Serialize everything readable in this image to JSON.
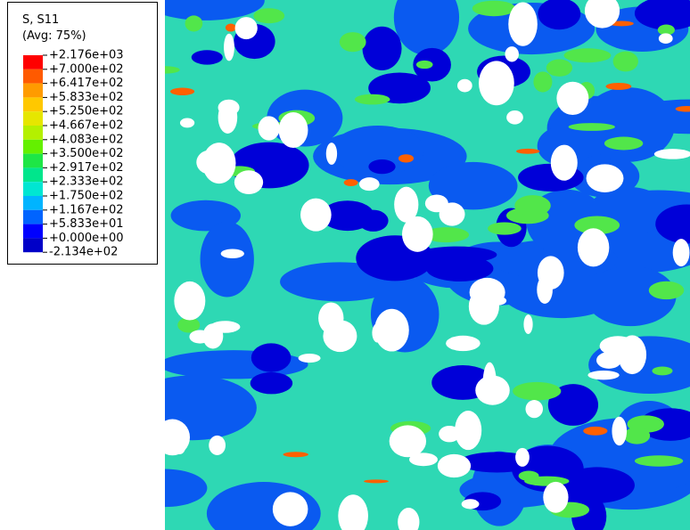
{
  "legend": {
    "title": "S, S11",
    "subtitle": "(Avg: 75%)",
    "labels": [
      "+2.176e+03",
      "+7.000e+02",
      "+6.417e+02",
      "+5.833e+02",
      "+5.250e+02",
      "+4.667e+02",
      "+4.083e+02",
      "+3.500e+02",
      "+2.917e+02",
      "+2.333e+02",
      "+1.750e+02",
      "+1.167e+02",
      "+5.833e+01",
      "+0.000e+00",
      "-2.134e+02"
    ],
    "colors": [
      "#ff0000",
      "#ff5a00",
      "#ff9b00",
      "#ffc800",
      "#e6e600",
      "#b4f000",
      "#64f000",
      "#1ee646",
      "#00e68c",
      "#00e6d2",
      "#00b4ff",
      "#0064ff",
      "#0000ff",
      "#0000c8"
    ]
  }
}
